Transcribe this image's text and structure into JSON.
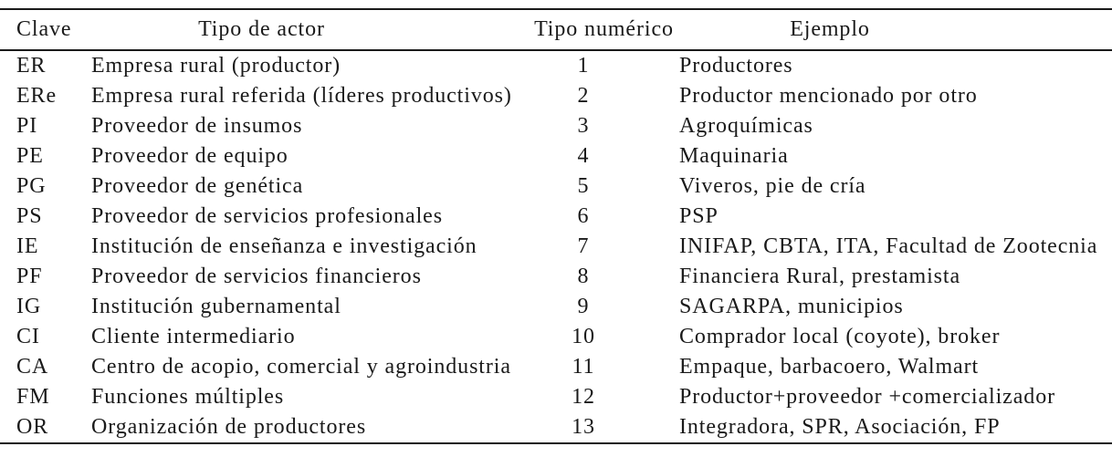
{
  "document": {
    "type": "table",
    "language": "es"
  },
  "colors": {
    "background": "#ffffff",
    "text": "#1a1a1a",
    "rule": "#1a1a1a"
  },
  "table": {
    "columns": [
      {
        "key": "clave",
        "label": "Clave"
      },
      {
        "key": "tipo_actor",
        "label": "Tipo de actor"
      },
      {
        "key": "tipo_numerico",
        "label": "Tipo numérico"
      },
      {
        "key": "ejemplo",
        "label": "Ejemplo"
      }
    ],
    "rows": [
      {
        "clave": "ER",
        "tipo_actor": "Empresa rural (productor)",
        "tipo_numerico": "1",
        "ejemplo": "Productores"
      },
      {
        "clave": "ERe",
        "tipo_actor": "Empresa rural referida (líderes productivos)",
        "tipo_numerico": "2",
        "ejemplo": "Productor mencionado por otro"
      },
      {
        "clave": "PI",
        "tipo_actor": "Proveedor de insumos",
        "tipo_numerico": "3",
        "ejemplo": "Agroquímicas"
      },
      {
        "clave": "PE",
        "tipo_actor": "Proveedor de equipo",
        "tipo_numerico": "4",
        "ejemplo": "Maquinaria"
      },
      {
        "clave": "PG",
        "tipo_actor": "Proveedor de genética",
        "tipo_numerico": "5",
        "ejemplo": "Viveros, pie de cría"
      },
      {
        "clave": "PS",
        "tipo_actor": "Proveedor de servicios profesionales",
        "tipo_numerico": "6",
        "ejemplo": "PSP"
      },
      {
        "clave": "IE",
        "tipo_actor": "Institución de enseñanza e investigación",
        "tipo_numerico": "7",
        "ejemplo": "INIFAP, CBTA, ITA, Facultad de Zootecnia"
      },
      {
        "clave": "PF",
        "tipo_actor": "Proveedor de servicios financieros",
        "tipo_numerico": "8",
        "ejemplo": "Financiera Rural, prestamista"
      },
      {
        "clave": "IG",
        "tipo_actor": "Institución gubernamental",
        "tipo_numerico": "9",
        "ejemplo": "SAGARPA, municipios"
      },
      {
        "clave": "CI",
        "tipo_actor": "Cliente intermediario",
        "tipo_numerico": "10",
        "ejemplo": "Comprador local (coyote), broker"
      },
      {
        "clave": "CA",
        "tipo_actor": "Centro de acopio, comercial y agroindustria",
        "tipo_numerico": "11",
        "ejemplo": "Empaque, barbacoero, Walmart"
      },
      {
        "clave": "FM",
        "tipo_actor": "Funciones múltiples",
        "tipo_numerico": "12",
        "ejemplo": "Productor+proveedor +comercializador"
      },
      {
        "clave": "OR",
        "tipo_actor": "Organización de productores",
        "tipo_numerico": "13",
        "ejemplo": "Integradora, SPR, Asociación, FP"
      }
    ]
  }
}
